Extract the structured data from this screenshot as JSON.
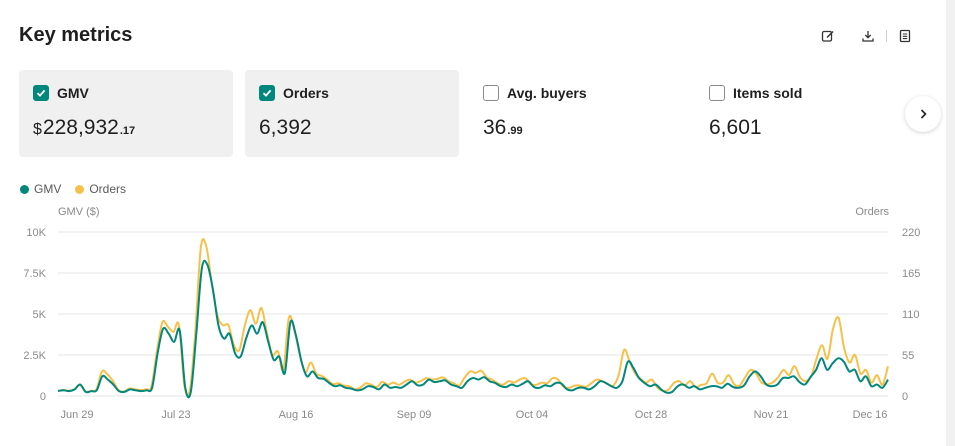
{
  "header": {
    "title": "Key metrics"
  },
  "toolbar": {
    "edit_icon": "edit-icon",
    "download_icon": "download-icon",
    "report_icon": "report-icon"
  },
  "metrics": [
    {
      "label": "GMV",
      "checked": true,
      "currency": "$",
      "whole": "228,932",
      "fraction": ".17"
    },
    {
      "label": "Orders",
      "checked": true,
      "currency": "",
      "whole": "6,392",
      "fraction": ""
    },
    {
      "label": "Avg. buyers",
      "checked": false,
      "currency": "",
      "whole": "36",
      "fraction": ".99"
    },
    {
      "label": "Items sold",
      "checked": false,
      "currency": "",
      "whole": "6,601",
      "fraction": ""
    }
  ],
  "colors": {
    "gmv": "#01877c",
    "orders": "#f6c04a",
    "grid": "#e6e6e6",
    "check": "#01877c"
  },
  "chart_data": {
    "type": "line",
    "legend": [
      "GMV",
      "Orders"
    ],
    "ylabel_left": "GMV ($)",
    "ylabel_right": "Orders",
    "y_left_ticks": [
      "0",
      "2.5K",
      "5K",
      "7.5K",
      "10K"
    ],
    "y_right_ticks": [
      "0",
      "55",
      "110",
      "165",
      "220"
    ],
    "ylim_left": [
      0,
      10000
    ],
    "ylim_right": [
      0,
      220
    ],
    "x_ticks": [
      "Jun 29",
      "Jul 23",
      "Aug 16",
      "Sep 09",
      "Oct 04",
      "Oct 28",
      "Nov 21",
      "Dec 16"
    ],
    "grid": true,
    "series": [
      {
        "name": "GMV",
        "axis": "left",
        "values": [
          300,
          350,
          300,
          400,
          700,
          250,
          300,
          350,
          1200,
          1000,
          700,
          300,
          250,
          400,
          350,
          300,
          350,
          500,
          2600,
          4100,
          3800,
          3300,
          4000,
          500,
          250,
          3800,
          7800,
          8000,
          6500,
          4300,
          3500,
          3800,
          2600,
          2400,
          3500,
          4300,
          3800,
          4500,
          3300,
          2200,
          2400,
          1400,
          4500,
          3700,
          2100,
          1200,
          1500,
          1100,
          1050,
          800,
          600,
          650,
          500,
          450,
          350,
          400,
          600,
          550,
          400,
          700,
          500,
          550,
          500,
          700,
          900,
          650,
          700,
          1000,
          850,
          900,
          950,
          700,
          600,
          500,
          900,
          1100,
          1000,
          1150,
          900,
          800,
          600,
          550,
          700,
          600,
          750,
          900,
          550,
          500,
          650,
          600,
          800,
          750,
          400,
          350,
          500,
          500,
          400,
          600,
          900,
          800,
          600,
          500,
          900,
          2100,
          1700,
          1100,
          800,
          600,
          700,
          400,
          200,
          250,
          600,
          700,
          500,
          600,
          400,
          500,
          600,
          600,
          500,
          750,
          550,
          500,
          650,
          1200,
          1500,
          1200,
          700,
          600,
          700,
          1100,
          1100,
          1200,
          850,
          700,
          1150,
          1600,
          2300,
          1600,
          2000,
          2300,
          2100,
          1500,
          1600,
          900,
          1200,
          600,
          700,
          500,
          1000
        ]
      },
      {
        "name": "Orders",
        "axis": "right",
        "values": [
          7,
          8,
          7,
          9,
          15,
          6,
          7,
          9,
          33,
          29,
          20,
          8,
          6,
          10,
          9,
          8,
          9,
          13,
          60,
          99,
          93,
          86,
          95,
          14,
          8,
          88,
          200,
          200,
          150,
          108,
          95,
          95,
          68,
          62,
          95,
          115,
          97,
          118,
          85,
          55,
          60,
          35,
          105,
          88,
          55,
          32,
          45,
          30,
          27,
          22,
          16,
          17,
          14,
          13,
          9,
          11,
          17,
          15,
          12,
          19,
          15,
          18,
          15,
          19,
          22,
          18,
          20,
          24,
          22,
          23,
          25,
          20,
          17,
          14,
          25,
          33,
          31,
          34,
          25,
          22,
          17,
          15,
          20,
          18,
          22,
          24,
          16,
          15,
          18,
          17,
          24,
          22,
          12,
          11,
          14,
          14,
          12,
          17,
          22,
          20,
          16,
          14,
          28,
          62,
          46,
          30,
          23,
          18,
          22,
          12,
          7,
          8,
          17,
          20,
          14,
          20,
          12,
          15,
          17,
          30,
          18,
          18,
          28,
          16,
          14,
          25,
          35,
          30,
          18,
          16,
          18,
          25,
          35,
          28,
          40,
          25,
          20,
          26,
          50,
          68,
          50,
          90,
          105,
          65,
          45,
          55,
          30,
          35,
          18,
          28,
          15,
          40
        ]
      }
    ]
  }
}
